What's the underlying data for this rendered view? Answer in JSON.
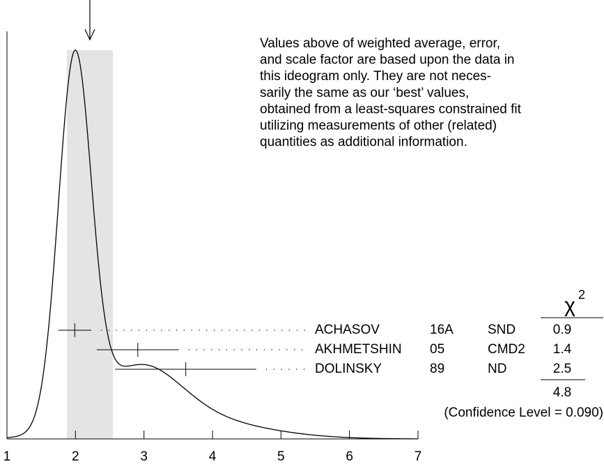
{
  "chart_data": {
    "type": "ideogram",
    "note": [
      "Values above of weighted average, error,",
      "and scale factor are based upon the data in",
      "this ideogram only.  They are not neces-",
      "sarily the same as our ‘best’ values,",
      "obtained from a least-squares constrained fit",
      "utilizing measurements of other (related)",
      "quantities as additional information."
    ],
    "xlim": [
      1,
      7
    ],
    "xticks": [
      1,
      2,
      3,
      4,
      5,
      6,
      7
    ],
    "weighted_average": 2.21,
    "band": [
      1.875,
      2.546
    ],
    "chi2_symbol": "χ",
    "chi2_power": "2",
    "measurements": [
      {
        "name": "ACHASOV",
        "ref": "16A",
        "experiment": "SND",
        "value": 1.99,
        "error": 0.24,
        "chi2": 0.9
      },
      {
        "name": "AKHMETSHIN",
        "ref": "05",
        "experiment": "CMD2",
        "value": 2.91,
        "error": 0.6,
        "chi2": 1.4
      },
      {
        "name": "DOLINSKY",
        "ref": "89",
        "experiment": "ND",
        "value": 3.61,
        "error": 1.03,
        "chi2": 2.5
      }
    ],
    "chi2_total": 4.8,
    "confidence_level": "(Confidence Level = 0.090)"
  }
}
